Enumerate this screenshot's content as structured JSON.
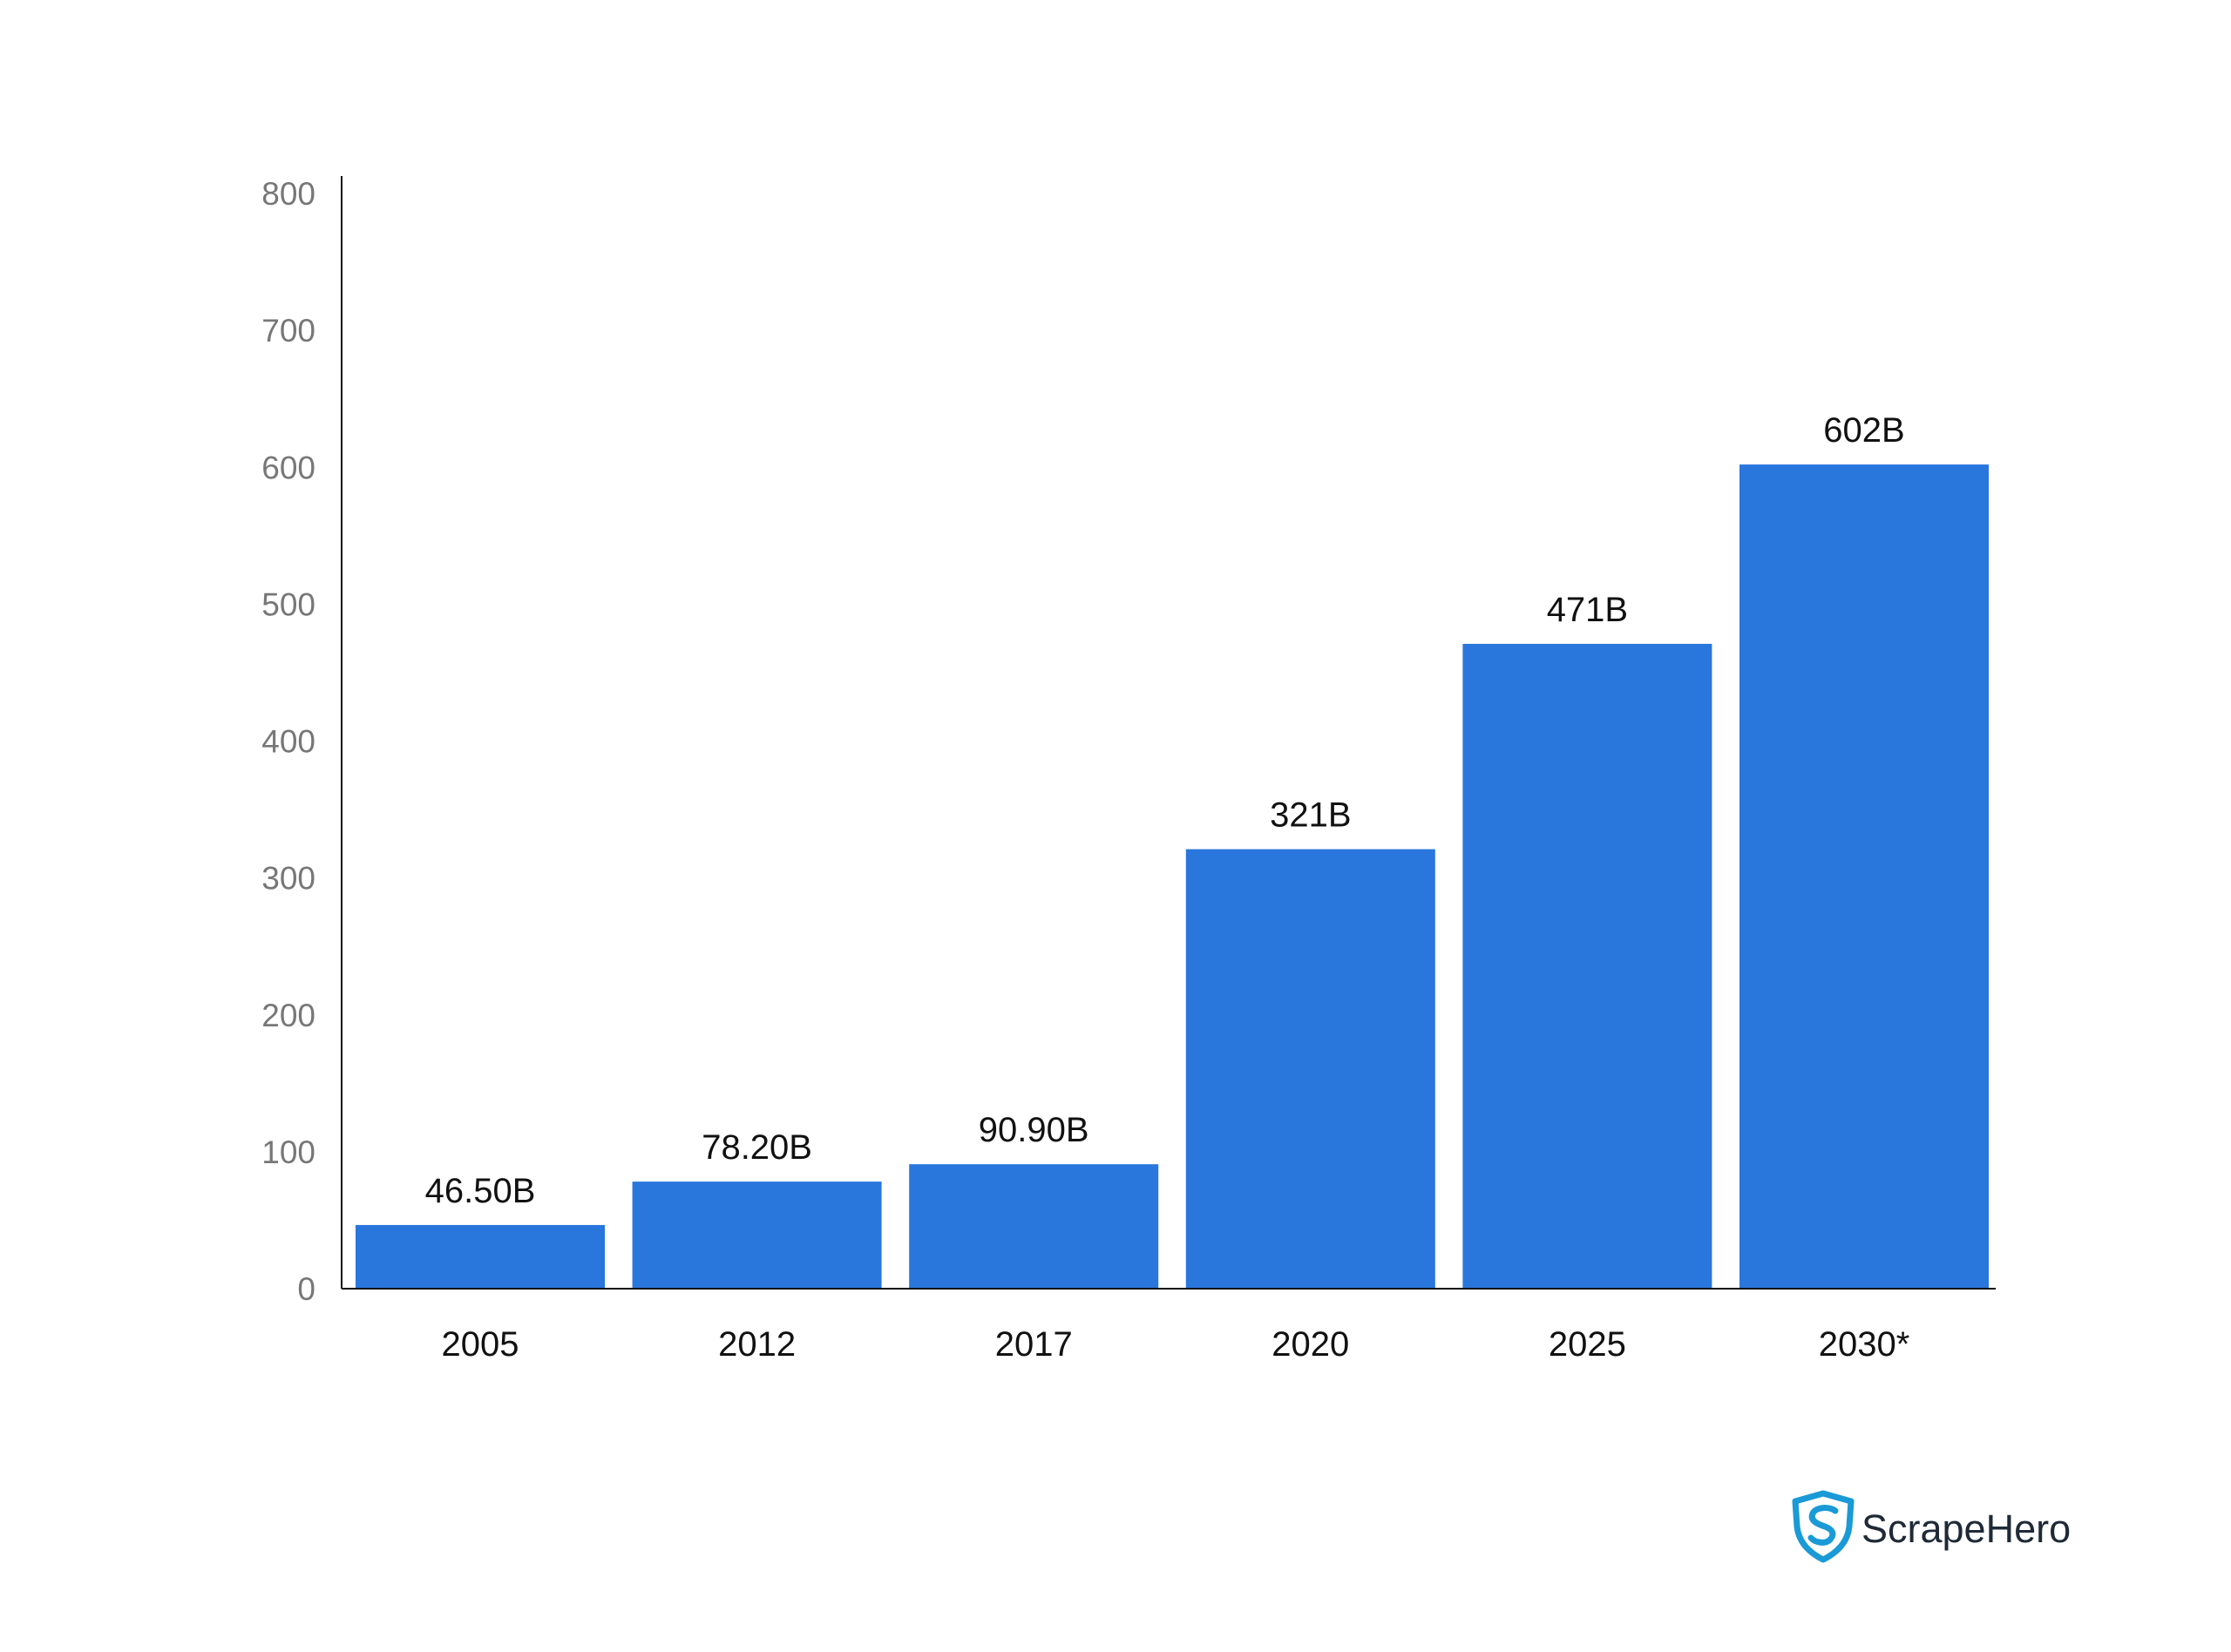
{
  "chart_data": {
    "type": "bar",
    "categories": [
      "2005",
      "2012",
      "2017",
      "2020",
      "2025",
      "2030*"
    ],
    "values": [
      46.5,
      78.2,
      90.9,
      321,
      471,
      602
    ],
    "data_labels": [
      "46.50B",
      "78.20B",
      "90.90B",
      "321B",
      "471B",
      "602B"
    ],
    "title": "",
    "xlabel": "",
    "ylabel": "",
    "ylim": [
      0,
      800
    ],
    "yticks": [
      "0",
      "100",
      "200",
      "300",
      "400",
      "500",
      "600",
      "700",
      "800"
    ],
    "grid": false,
    "bar_color": "#2976dd"
  },
  "branding": {
    "logo_text": "ScrapeHero",
    "shield_color": "#1a9ad6",
    "text_color": "#1f2a37"
  }
}
